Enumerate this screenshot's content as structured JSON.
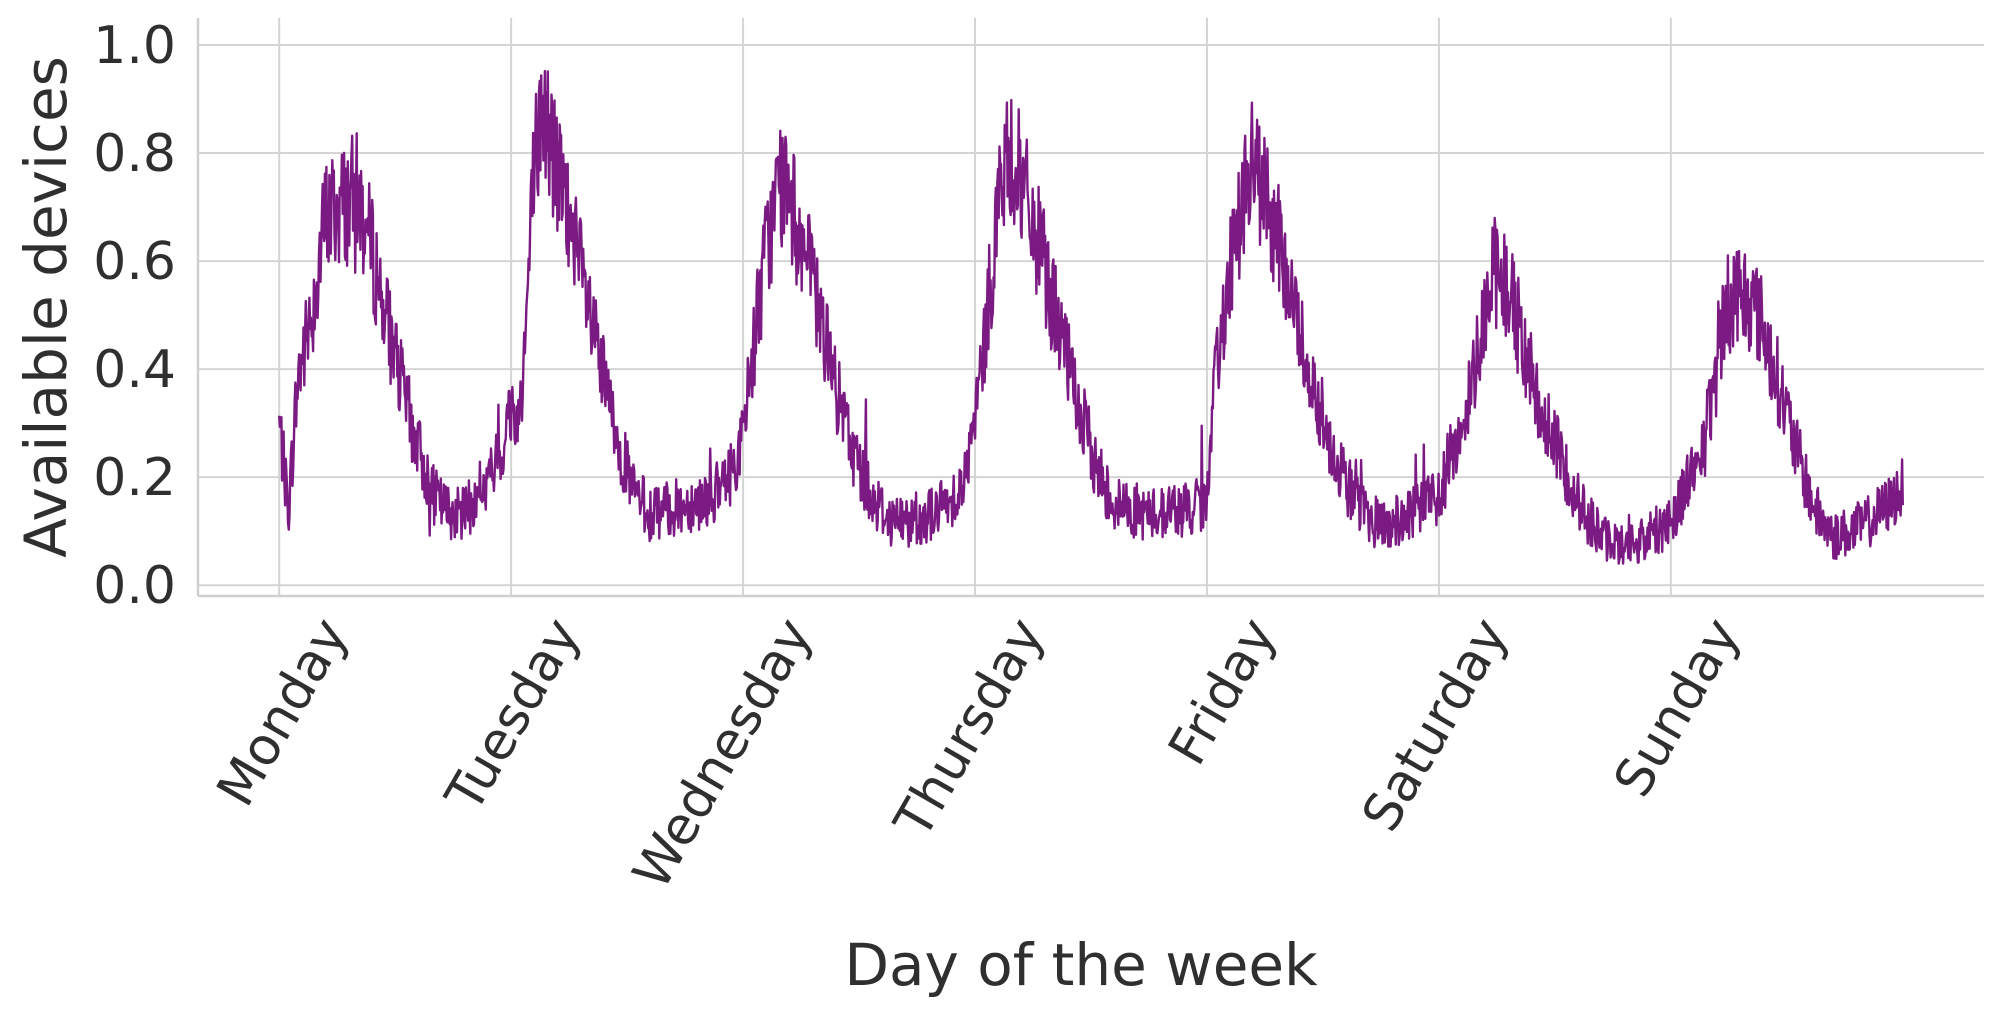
{
  "chart_data": {
    "type": "line",
    "xlabel": "Day of the week",
    "ylabel": "Available devices",
    "x_ticks": [
      "Monday",
      "Tuesday",
      "Wednesday",
      "Thursday",
      "Friday",
      "Saturday",
      "Sunday"
    ],
    "x_range_days": [
      -0.35,
      7.35
    ],
    "ylim": [
      -0.02,
      1.05
    ],
    "y_ticks": [
      0.0,
      0.2,
      0.4,
      0.6,
      0.8,
      1.0
    ],
    "y_tick_labels": [
      "0.0",
      "0.2",
      "0.4",
      "0.6",
      "0.8",
      "1.0"
    ],
    "grid": true,
    "series": [
      {
        "color": "#7b1a82",
        "x_unit": "days since Monday 00:00",
        "x": [
          0.0,
          0.04,
          0.08,
          0.14,
          0.2,
          0.26,
          0.34,
          0.42,
          0.5,
          0.58,
          0.66,
          0.72,
          0.78,
          0.84,
          0.9,
          0.96,
          1.0,
          1.03,
          1.06,
          1.1,
          1.14,
          1.2,
          1.28,
          1.36,
          1.44,
          1.52,
          1.6,
          1.68,
          1.76,
          1.84,
          1.92,
          2.0,
          2.04,
          2.1,
          2.16,
          2.24,
          2.32,
          2.4,
          2.48,
          2.56,
          2.64,
          2.72,
          2.8,
          2.88,
          2.96,
          3.0,
          3.05,
          3.1,
          3.16,
          3.2,
          3.28,
          3.36,
          3.44,
          3.52,
          3.6,
          3.68,
          3.76,
          3.84,
          3.92,
          4.0,
          4.04,
          4.1,
          4.16,
          4.2,
          4.28,
          4.36,
          4.44,
          4.52,
          4.6,
          4.68,
          4.76,
          4.84,
          4.92,
          5.0,
          5.06,
          5.12,
          5.18,
          5.24,
          5.3,
          5.38,
          5.46,
          5.54,
          5.62,
          5.7,
          5.78,
          5.86,
          5.94,
          6.0,
          6.06,
          6.1,
          6.14,
          6.18,
          6.24,
          6.3,
          6.38,
          6.46,
          6.54,
          6.62,
          6.7,
          6.78,
          6.86,
          6.94,
          7.0
        ],
        "y": [
          0.3,
          0.14,
          0.38,
          0.5,
          0.68,
          0.7,
          0.72,
          0.58,
          0.42,
          0.28,
          0.17,
          0.14,
          0.13,
          0.15,
          0.19,
          0.25,
          0.33,
          0.3,
          0.45,
          0.78,
          0.88,
          0.76,
          0.62,
          0.45,
          0.3,
          0.18,
          0.13,
          0.14,
          0.15,
          0.16,
          0.18,
          0.27,
          0.43,
          0.62,
          0.75,
          0.66,
          0.52,
          0.36,
          0.24,
          0.16,
          0.12,
          0.12,
          0.13,
          0.15,
          0.2,
          0.3,
          0.48,
          0.72,
          0.8,
          0.74,
          0.62,
          0.48,
          0.34,
          0.22,
          0.15,
          0.14,
          0.13,
          0.14,
          0.14,
          0.15,
          0.4,
          0.6,
          0.72,
          0.78,
          0.68,
          0.54,
          0.4,
          0.28,
          0.19,
          0.13,
          0.11,
          0.12,
          0.14,
          0.17,
          0.25,
          0.32,
          0.48,
          0.58,
          0.55,
          0.42,
          0.3,
          0.22,
          0.14,
          0.09,
          0.07,
          0.08,
          0.1,
          0.12,
          0.18,
          0.22,
          0.25,
          0.35,
          0.52,
          0.55,
          0.5,
          0.38,
          0.25,
          0.14,
          0.09,
          0.1,
          0.12,
          0.15,
          0.18
        ]
      }
    ]
  }
}
